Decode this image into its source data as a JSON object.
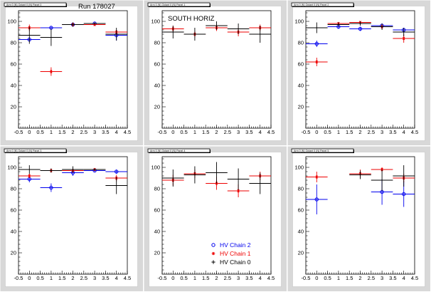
{
  "run_label": "Run 178027",
  "colors": {
    "HV Chain 2": "#0000ee",
    "HV Chain 1": "#ee0000",
    "HV Chain 0": "#000000"
  },
  "chart_data": [
    {
      "type": "scatter",
      "title": "Arm 0 (N) Octant 0 (N) Panel 0",
      "annotation": "",
      "xlim": [
        -0.5,
        4.5
      ],
      "ylim": [
        0,
        110
      ],
      "xticks": [
        "-0.5",
        "0",
        "0.5",
        "1",
        "1.5",
        "2",
        "2.5",
        "3",
        "3.5",
        "4",
        "4.5"
      ],
      "yticks": [
        "20",
        "40",
        "60",
        "80",
        "100"
      ],
      "series": [
        {
          "name": "HV Chain 2",
          "marker": "circle",
          "points": [
            {
              "x": 0,
              "y": 83,
              "xerr": 0.5,
              "yerr": 2
            },
            {
              "x": 1,
              "y": 94,
              "xerr": 0.5,
              "yerr": 1
            },
            {
              "x": 2,
              "y": 97,
              "xerr": 0.5,
              "yerr": 1
            },
            {
              "x": 3,
              "y": 98,
              "xerr": 0.5,
              "yerr": 1
            },
            {
              "x": 4,
              "y": 87,
              "xerr": 0.5,
              "yerr": 5
            }
          ]
        },
        {
          "name": "HV Chain 1",
          "marker": "star",
          "points": [
            {
              "x": 0,
              "y": 94,
              "xerr": 0.5,
              "yerr": 3
            },
            {
              "x": 1,
              "y": 53,
              "xerr": 0.5,
              "yerr": 4
            },
            {
              "x": 2,
              "y": 97,
              "xerr": 0.5,
              "yerr": 1
            },
            {
              "x": 3,
              "y": 97,
              "xerr": 0.5,
              "yerr": 1
            },
            {
              "x": 4,
              "y": 90,
              "xerr": 0.5,
              "yerr": 2
            }
          ]
        },
        {
          "name": "HV Chain 0",
          "marker": "cross",
          "points": [
            {
              "x": 0,
              "y": 87,
              "xerr": 0.5,
              "yerr": 8
            },
            {
              "x": 1,
              "y": 85,
              "xerr": 0.5,
              "yerr": 8
            },
            {
              "x": 2,
              "y": 97,
              "xerr": 0.5,
              "yerr": 2
            },
            {
              "x": 3,
              "y": 98,
              "xerr": 0.5,
              "yerr": 1
            },
            {
              "x": 4,
              "y": 88,
              "xerr": 0.5,
              "yerr": 6
            }
          ]
        }
      ]
    },
    {
      "type": "scatter",
      "title": "Arm 0 (N) Octant 0 (N) Panel 1",
      "annotation": "SOUTH HORIZ",
      "xlim": [
        -0.5,
        4.5
      ],
      "ylim": [
        0,
        110
      ],
      "xticks": [
        "-0.5",
        "0",
        "0.5",
        "1",
        "1.5",
        "2",
        "2.5",
        "3",
        "3.5",
        "4",
        "4.5"
      ],
      "yticks": [
        "20",
        "40",
        "60",
        "80",
        "100"
      ],
      "series": [
        {
          "name": "HV Chain 1",
          "marker": "star",
          "points": [
            {
              "x": 0,
              "y": 93,
              "xerr": 0.5,
              "yerr": 3
            },
            {
              "x": 1,
              "y": 88,
              "xerr": 0.5,
              "yerr": 3
            },
            {
              "x": 2,
              "y": 94,
              "xerr": 0.5,
              "yerr": 3
            },
            {
              "x": 3,
              "y": 90,
              "xerr": 0.5,
              "yerr": 4
            },
            {
              "x": 4,
              "y": 94,
              "xerr": 0.5,
              "yerr": 3
            }
          ]
        },
        {
          "name": "HV Chain 0",
          "marker": "cross",
          "points": [
            {
              "x": 0,
              "y": 90,
              "xerr": 0.5,
              "yerr": 6
            },
            {
              "x": 1,
              "y": 88,
              "xerr": 0.5,
              "yerr": 6
            },
            {
              "x": 2,
              "y": 96,
              "xerr": 0.5,
              "yerr": 4
            },
            {
              "x": 3,
              "y": 93,
              "xerr": 0.5,
              "yerr": 5
            },
            {
              "x": 4,
              "y": 88,
              "xerr": 0.5,
              "yerr": 8
            }
          ]
        }
      ]
    },
    {
      "type": "scatter",
      "title": "Arm 0 (N) Octant 0 (N) Panel 2",
      "annotation": "",
      "xlim": [
        -0.5,
        4.5
      ],
      "ylim": [
        0,
        110
      ],
      "xticks": [
        "-0.5",
        "0",
        "0.5",
        "1",
        "1.5",
        "2",
        "2.5",
        "3",
        "3.5",
        "4",
        "4.5"
      ],
      "yticks": [
        "20",
        "40",
        "60",
        "80",
        "100"
      ],
      "series": [
        {
          "name": "HV Chain 2",
          "marker": "circle",
          "points": [
            {
              "x": 0,
              "y": 79,
              "xerr": 0.5,
              "yerr": 3
            },
            {
              "x": 1,
              "y": 95,
              "xerr": 0.5,
              "yerr": 2
            },
            {
              "x": 2,
              "y": 93,
              "xerr": 0.5,
              "yerr": 2
            },
            {
              "x": 3,
              "y": 96,
              "xerr": 0.5,
              "yerr": 2
            },
            {
              "x": 4,
              "y": 92,
              "xerr": 0.5,
              "yerr": 2
            }
          ]
        },
        {
          "name": "HV Chain 1",
          "marker": "star",
          "points": [
            {
              "x": 0,
              "y": 62,
              "xerr": 0.5,
              "yerr": 4
            },
            {
              "x": 1,
              "y": 98,
              "xerr": 0.5,
              "yerr": 1
            },
            {
              "x": 2,
              "y": 99,
              "xerr": 0.5,
              "yerr": 1
            },
            {
              "x": 3,
              "y": 95,
              "xerr": 0.5,
              "yerr": 2
            },
            {
              "x": 4,
              "y": 84,
              "xerr": 0.5,
              "yerr": 4
            }
          ]
        },
        {
          "name": "HV Chain 0",
          "marker": "cross",
          "points": [
            {
              "x": 0,
              "y": 94,
              "xerr": 0.5,
              "yerr": 5
            },
            {
              "x": 1,
              "y": 97,
              "xerr": 0.5,
              "yerr": 2
            },
            {
              "x": 2,
              "y": 98,
              "xerr": 0.5,
              "yerr": 2
            },
            {
              "x": 3,
              "y": 95,
              "xerr": 0.5,
              "yerr": 3
            },
            {
              "x": 4,
              "y": 90,
              "xerr": 0.5,
              "yerr": 4
            }
          ]
        }
      ]
    },
    {
      "type": "scatter",
      "title": "Arm 0 (N) Octant 0 (N) Panel 3",
      "annotation": "",
      "xlim": [
        -0.5,
        4.5
      ],
      "ylim": [
        0,
        110
      ],
      "xticks": [
        "-0.5",
        "0",
        "0.5",
        "1",
        "1.5",
        "2",
        "2.5",
        "3",
        "3.5",
        "4",
        "4.5"
      ],
      "yticks": [
        "20",
        "40",
        "60",
        "80",
        "100"
      ],
      "series": [
        {
          "name": "HV Chain 2",
          "marker": "circle",
          "points": [
            {
              "x": 0,
              "y": 89,
              "xerr": 0.5,
              "yerr": 3
            },
            {
              "x": 1,
              "y": 81,
              "xerr": 0.5,
              "yerr": 4
            },
            {
              "x": 2,
              "y": 95,
              "xerr": 0.5,
              "yerr": 3
            },
            {
              "x": 3,
              "y": 97,
              "xerr": 0.5,
              "yerr": 1
            },
            {
              "x": 4,
              "y": 96,
              "xerr": 0.5,
              "yerr": 2
            }
          ]
        },
        {
          "name": "HV Chain 1",
          "marker": "star",
          "points": [
            {
              "x": 0,
              "y": 92,
              "xerr": 0.5,
              "yerr": 2
            },
            {
              "x": 1,
              "y": 97,
              "xerr": 0.5,
              "yerr": 1
            },
            {
              "x": 2,
              "y": 97,
              "xerr": 0.5,
              "yerr": 1
            },
            {
              "x": 3,
              "y": 98,
              "xerr": 0.5,
              "yerr": 1
            },
            {
              "x": 4,
              "y": 90,
              "xerr": 0.5,
              "yerr": 3
            }
          ]
        },
        {
          "name": "HV Chain 0",
          "marker": "cross",
          "points": [
            {
              "x": 0,
              "y": 98,
              "xerr": 0.5,
              "yerr": 4
            },
            {
              "x": 1,
              "y": 97,
              "xerr": 0.5,
              "yerr": 2
            },
            {
              "x": 2,
              "y": 98,
              "xerr": 0.5,
              "yerr": 3
            },
            {
              "x": 3,
              "y": 98,
              "xerr": 0.5,
              "yerr": 1
            },
            {
              "x": 4,
              "y": 83,
              "xerr": 0.5,
              "yerr": 8
            }
          ]
        }
      ]
    },
    {
      "type": "scatter",
      "title": "Arm 0 (N) Octant 0 (N) Panel 4",
      "annotation": "",
      "xlim": [
        -0.5,
        4.5
      ],
      "ylim": [
        0,
        110
      ],
      "xticks": [
        "-0.5",
        "0",
        "0.5",
        "1",
        "1.5",
        "2",
        "2.5",
        "3",
        "3.5",
        "4",
        "4.5"
      ],
      "yticks": [
        "20",
        "40",
        "60",
        "80",
        "100"
      ],
      "legend": {
        "placement": "bottom-right",
        "entries": [
          {
            "label": "HV Chain 2",
            "marker": "circle"
          },
          {
            "label": "HV Chain 1",
            "marker": "star"
          },
          {
            "label": "HV Chain 0",
            "marker": "cross"
          }
        ]
      },
      "series": [
        {
          "name": "HV Chain 1",
          "marker": "star",
          "points": [
            {
              "x": 0,
              "y": 88,
              "xerr": 0.5,
              "yerr": 5
            },
            {
              "x": 1,
              "y": 94,
              "xerr": 0.5,
              "yerr": 4
            },
            {
              "x": 2,
              "y": 85,
              "xerr": 0.5,
              "yerr": 6
            },
            {
              "x": 3,
              "y": 78,
              "xerr": 0.5,
              "yerr": 6
            },
            {
              "x": 4,
              "y": 92,
              "xerr": 0.5,
              "yerr": 4
            }
          ]
        },
        {
          "name": "HV Chain 0",
          "marker": "cross",
          "points": [
            {
              "x": 0,
              "y": 90,
              "xerr": 0.5,
              "yerr": 8
            },
            {
              "x": 1,
              "y": 93,
              "xerr": 0.5,
              "yerr": 8
            },
            {
              "x": 2,
              "y": 95,
              "xerr": 0.5,
              "yerr": 10
            },
            {
              "x": 3,
              "y": 89,
              "xerr": 0.5,
              "yerr": 10
            },
            {
              "x": 4,
              "y": 85,
              "xerr": 0.5,
              "yerr": 10
            }
          ]
        }
      ]
    },
    {
      "type": "scatter",
      "title": "Arm 0 (N) Octant 0 (N) Panel 5",
      "annotation": "",
      "xlim": [
        -0.5,
        4.5
      ],
      "ylim": [
        0,
        110
      ],
      "xticks": [
        "-0.5",
        "0",
        "0.5",
        "1",
        "1.5",
        "2",
        "2.5",
        "3",
        "3.5",
        "4",
        "4.5"
      ],
      "yticks": [
        "20",
        "40",
        "60",
        "80",
        "100"
      ],
      "series": [
        {
          "name": "HV Chain 2",
          "marker": "circle",
          "points": [
            {
              "x": 0,
              "y": 70,
              "xerr": 0.5,
              "yerr": 14
            },
            {
              "x": 3,
              "y": 77,
              "xerr": 0.5,
              "yerr": 12
            },
            {
              "x": 4,
              "y": 75,
              "xerr": 0.5,
              "yerr": 12
            }
          ]
        },
        {
          "name": "HV Chain 1",
          "marker": "star",
          "points": [
            {
              "x": 0,
              "y": 91,
              "xerr": 0.5,
              "yerr": 5
            },
            {
              "x": 2,
              "y": 94,
              "xerr": 0.5,
              "yerr": 4
            },
            {
              "x": 3,
              "y": 98,
              "xerr": 0.5,
              "yerr": 2
            },
            {
              "x": 4,
              "y": 90,
              "xerr": 0.5,
              "yerr": 4
            }
          ]
        },
        {
          "name": "HV Chain 0",
          "marker": "cross",
          "points": [
            {
              "x": 2,
              "y": 93,
              "xerr": 0.5,
              "yerr": 4
            },
            {
              "x": 3,
              "y": 88,
              "xerr": 0.5,
              "yerr": 10
            },
            {
              "x": 4,
              "y": 92,
              "xerr": 0.5,
              "yerr": 10
            }
          ]
        }
      ]
    }
  ]
}
